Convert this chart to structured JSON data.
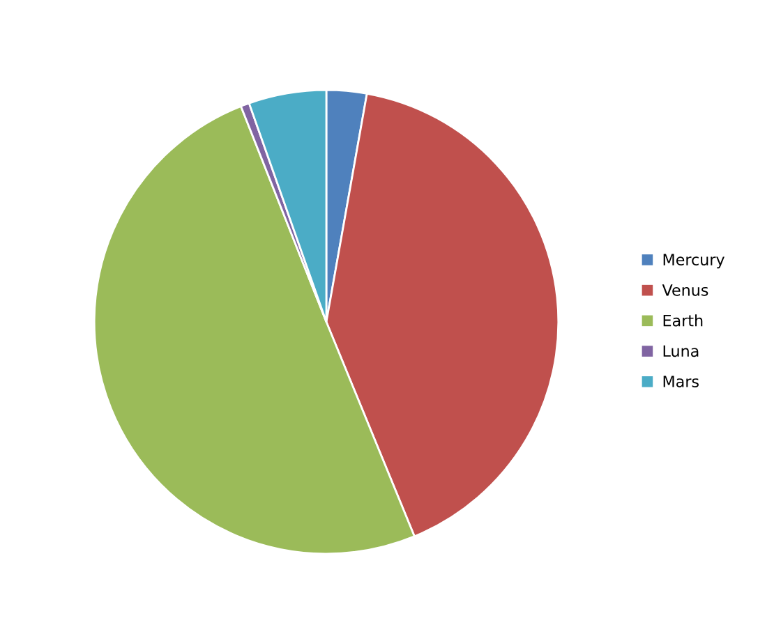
{
  "chart_data": {
    "type": "pie",
    "categories": [
      "Mercury",
      "Venus",
      "Earth",
      "Luna",
      "Mars"
    ],
    "values": [
      2.8,
      41.0,
      50.2,
      0.6,
      5.4
    ],
    "colors": [
      "#4f81bd",
      "#c0504d",
      "#9bbb59",
      "#8064a2",
      "#4bacc6"
    ],
    "legend": "right"
  }
}
